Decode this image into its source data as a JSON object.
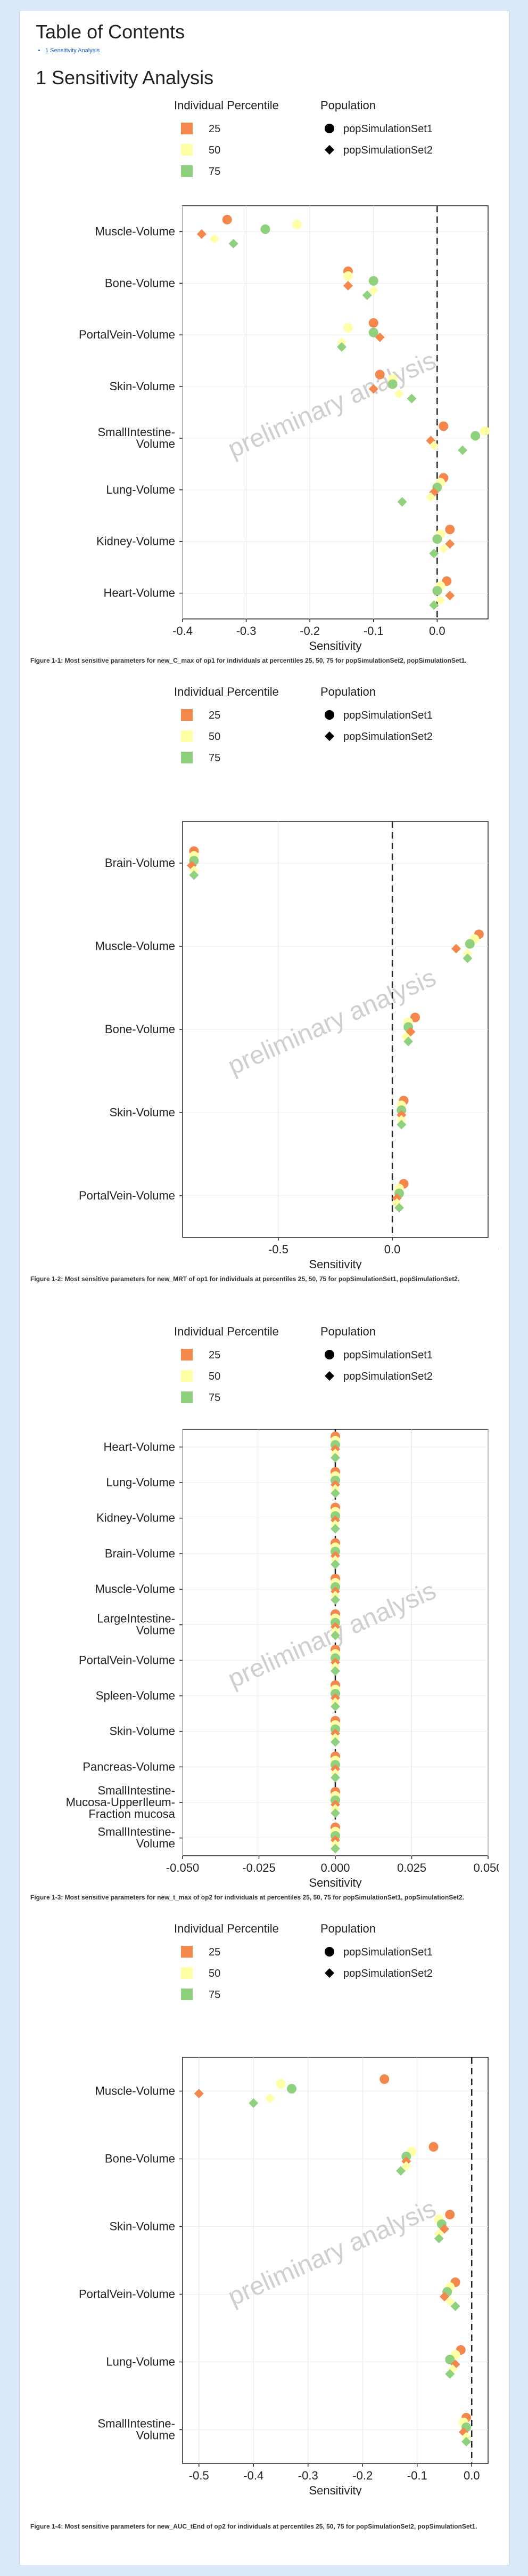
{
  "toc": {
    "title": "Table of Contents",
    "items": [
      {
        "label": "1 Sensitivity Analysis"
      }
    ]
  },
  "section": {
    "title": "1 Sensitivity Analysis"
  },
  "watermark": "preliminary analysis",
  "legend": {
    "percentile_title": "Individual Percentile",
    "population_title": "Population",
    "percentiles": [
      {
        "label": "25",
        "color": "#f4874b"
      },
      {
        "label": "50",
        "color": "#ffffa8"
      },
      {
        "label": "75",
        "color": "#8fd17f"
      }
    ],
    "populations": [
      {
        "label": "popSimulationSet1",
        "shape": "circle"
      },
      {
        "label": "popSimulationSet2",
        "shape": "diamond"
      }
    ]
  },
  "colors": {
    "p25": "#f4874b",
    "p50": "#ffffa8",
    "p75": "#8fd17f",
    "dashed_zero": "#222222"
  },
  "chart_data": [
    {
      "type": "scatter",
      "xlabel": "Sensitivity",
      "xlim": [
        -0.4,
        0.08
      ],
      "xticks": [
        -0.4,
        -0.3,
        -0.2,
        -0.1,
        0.0
      ],
      "xtick_labels": [
        "-0.4",
        "-0.3",
        "-0.2",
        "-0.1",
        "0.0"
      ],
      "categories": [
        "Muscle-Volume",
        "Bone-Volume",
        "PortalVein-Volume",
        "Skin-Volume",
        "SmallIntestine-\nVolume",
        "Lung-Volume",
        "Kidney-Volume",
        "Heart-Volume"
      ],
      "series": [
        {
          "percentile": "25",
          "population": "popSimulationSet1",
          "values": [
            -0.33,
            -0.14,
            -0.1,
            -0.09,
            0.01,
            0.01,
            0.02,
            0.015
          ]
        },
        {
          "percentile": "50",
          "population": "popSimulationSet1",
          "values": [
            -0.22,
            -0.14,
            -0.14,
            -0.07,
            0.075,
            0.005,
            0.005,
            0.005
          ]
        },
        {
          "percentile": "75",
          "population": "popSimulationSet1",
          "values": [
            -0.27,
            -0.1,
            -0.1,
            -0.07,
            0.06,
            0.0,
            0.0,
            0.0
          ]
        },
        {
          "percentile": "25",
          "population": "popSimulationSet2",
          "values": [
            -0.37,
            -0.14,
            -0.09,
            -0.1,
            -0.01,
            -0.005,
            0.02,
            0.02
          ]
        },
        {
          "percentile": "50",
          "population": "popSimulationSet2",
          "values": [
            -0.35,
            -0.1,
            -0.15,
            -0.06,
            -0.005,
            -0.01,
            0.01,
            0.005
          ]
        },
        {
          "percentile": "75",
          "population": "popSimulationSet2",
          "values": [
            -0.32,
            -0.11,
            -0.15,
            -0.04,
            0.04,
            -0.055,
            -0.005,
            -0.005
          ]
        }
      ],
      "caption": "Figure 1-1: Most sensitive parameters for new_C_max of op1 for individuals at percentiles 25, 50, 75 for popSimulationSet2, popSimulationSet1."
    },
    {
      "type": "scatter",
      "xlabel": "Sensitivity",
      "xlim": [
        -0.92,
        0.42
      ],
      "xticks": [
        -0.5,
        0.0,
        0.5
      ],
      "xtick_labels": [
        "-0.5",
        "0.0",
        "0.5"
      ],
      "categories": [
        "Brain-Volume",
        "Muscle-Volume",
        "Bone-Volume",
        "Skin-Volume",
        "PortalVein-Volume"
      ],
      "series": [
        {
          "percentile": "25",
          "population": "popSimulationSet1",
          "values": [
            -0.87,
            0.38,
            0.1,
            0.05,
            0.05
          ]
        },
        {
          "percentile": "50",
          "population": "popSimulationSet1",
          "values": [
            -0.87,
            0.36,
            0.07,
            0.04,
            0.03
          ]
        },
        {
          "percentile": "75",
          "population": "popSimulationSet1",
          "values": [
            -0.87,
            0.34,
            0.07,
            0.04,
            0.03
          ]
        },
        {
          "percentile": "25",
          "population": "popSimulationSet2",
          "values": [
            -0.88,
            0.28,
            0.08,
            0.04,
            0.02
          ]
        },
        {
          "percentile": "50",
          "population": "popSimulationSet2",
          "values": [
            -0.87,
            0.33,
            0.06,
            0.04,
            0.02
          ]
        },
        {
          "percentile": "75",
          "population": "popSimulationSet2",
          "values": [
            -0.87,
            0.33,
            0.07,
            0.04,
            0.03
          ]
        }
      ],
      "caption": "Figure 1-2: Most sensitive parameters for new_MRT of op1 for individuals at percentiles 25, 50, 75 for popSimulationSet1, popSimulationSet2."
    },
    {
      "type": "scatter",
      "xlabel": "Sensitivity",
      "xlim": [
        -0.05,
        0.05
      ],
      "xticks": [
        -0.05,
        -0.025,
        0.0,
        0.025,
        0.05
      ],
      "xtick_labels": [
        "-0.050",
        "-0.025",
        "0.000",
        "0.025",
        "0.050"
      ],
      "categories": [
        "Heart-Volume",
        "Lung-Volume",
        "Kidney-Volume",
        "Brain-Volume",
        "Muscle-Volume",
        "LargeIntestine-\nVolume",
        "PortalVein-Volume",
        "Spleen-Volume",
        "Skin-Volume",
        "Pancreas-Volume",
        "SmallIntestine-\nMucosa-UpperIleum-\nFraction mucosa",
        "SmallIntestine-\nVolume"
      ],
      "series": [
        {
          "percentile": "25",
          "population": "popSimulationSet1",
          "values": [
            0,
            0,
            0,
            0,
            0,
            0,
            0,
            0,
            0,
            0,
            0,
            0
          ]
        },
        {
          "percentile": "50",
          "population": "popSimulationSet1",
          "values": [
            0,
            0,
            0,
            0,
            0,
            0,
            0,
            0,
            0,
            0,
            0,
            0
          ]
        },
        {
          "percentile": "75",
          "population": "popSimulationSet1",
          "values": [
            0,
            0,
            0,
            0,
            0,
            0,
            0,
            0,
            0,
            0,
            0,
            0
          ]
        },
        {
          "percentile": "25",
          "population": "popSimulationSet2",
          "values": [
            0,
            0,
            0,
            0,
            0,
            0,
            0,
            0,
            0,
            0,
            0,
            0
          ]
        },
        {
          "percentile": "50",
          "population": "popSimulationSet2",
          "values": [
            0,
            0,
            0,
            0,
            0,
            0,
            0,
            0,
            0,
            0,
            0,
            0
          ]
        },
        {
          "percentile": "75",
          "population": "popSimulationSet2",
          "values": [
            0,
            0,
            0,
            0,
            0,
            0,
            0,
            0,
            0,
            0,
            0,
            0
          ]
        }
      ],
      "caption": "Figure 1-3: Most sensitive parameters for new_t_max of op2 for individuals at percentiles 25, 50, 75 for popSimulationSet1, popSimulationSet2."
    },
    {
      "type": "scatter",
      "xlabel": "Sensitivity",
      "xlim": [
        -0.53,
        0.03
      ],
      "xticks": [
        -0.5,
        -0.4,
        -0.3,
        -0.2,
        -0.1,
        0.0
      ],
      "xtick_labels": [
        "-0.5",
        "-0.4",
        "-0.3",
        "-0.2",
        "-0.1",
        "0.0"
      ],
      "categories": [
        "Muscle-Volume",
        "Bone-Volume",
        "Skin-Volume",
        "PortalVein-Volume",
        "Lung-Volume",
        "SmallIntestine-\nVolume"
      ],
      "series": [
        {
          "percentile": "25",
          "population": "popSimulationSet1",
          "values": [
            -0.16,
            -0.07,
            -0.04,
            -0.03,
            -0.02,
            -0.01
          ]
        },
        {
          "percentile": "50",
          "population": "popSimulationSet1",
          "values": [
            -0.35,
            -0.11,
            -0.06,
            -0.04,
            -0.03,
            -0.015
          ]
        },
        {
          "percentile": "75",
          "population": "popSimulationSet1",
          "values": [
            -0.33,
            -0.12,
            -0.055,
            -0.045,
            -0.04,
            -0.01
          ]
        },
        {
          "percentile": "25",
          "population": "popSimulationSet2",
          "values": [
            -0.5,
            -0.12,
            -0.05,
            -0.05,
            -0.03,
            -0.015
          ]
        },
        {
          "percentile": "50",
          "population": "popSimulationSet2",
          "values": [
            -0.37,
            -0.12,
            -0.06,
            -0.04,
            -0.035,
            -0.01
          ]
        },
        {
          "percentile": "75",
          "population": "popSimulationSet2",
          "values": [
            -0.4,
            -0.13,
            -0.06,
            -0.03,
            -0.04,
            -0.01
          ]
        }
      ],
      "caption": "Figure 1-4: Most sensitive parameters for new_AUC_tEnd of op2 for individuals at percentiles 25, 50, 75 for popSimulationSet2, popSimulationSet1."
    }
  ]
}
